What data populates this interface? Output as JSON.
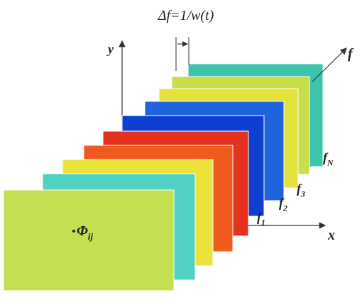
{
  "delta_label": "Δf=1/w(t)",
  "axes": {
    "y": "y",
    "f": "f",
    "x": "x"
  },
  "slice_labels": [
    {
      "base": "f",
      "sub": "N"
    },
    {
      "base": "f",
      "sub": "3"
    },
    {
      "base": "f",
      "sub": "2"
    },
    {
      "base": "f",
      "sub": "1"
    }
  ],
  "point_label": {
    "base": "Φ",
    "sub": "ij"
  }
}
